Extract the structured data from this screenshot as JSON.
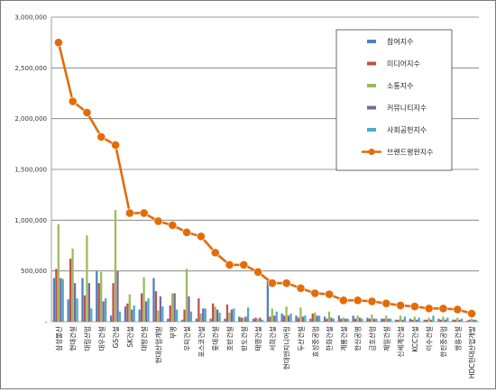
{
  "chart_data": {
    "type": "bar",
    "y_ticks": [
      "-",
      "500,000",
      "1,000,000",
      "1,500,000",
      "2,000,000",
      "2,500,000",
      "3,000,000"
    ],
    "ylim": [
      0,
      3000000
    ],
    "grid": true,
    "legend_position": "top-right",
    "categories": [
      "삼성물산",
      "현대건설",
      "대림산업",
      "대우건설",
      "GS건설",
      "SK건설",
      "대방건설",
      "현대산업개발",
      "부영",
      "우미건설",
      "포스코건설",
      "롯데건설",
      "호반건설",
      "반도건설",
      "태영건설",
      "서희건설",
      "현대엔지니어링",
      "두산건설",
      "효성중공업",
      "한화건설",
      "계룡건설",
      "한신공영",
      "금호산업",
      "제일건설",
      "신세계건설",
      "KCC건설",
      "이수건설",
      "한진중공업",
      "쌍용건설",
      "HDC현대산업개발"
    ],
    "series": [
      {
        "name": "참여지수",
        "color": "#4f81bd",
        "type": "bar",
        "values": [
          430000,
          220000,
          430000,
          500000,
          60000,
          150000,
          120000,
          430000,
          30000,
          20000,
          30000,
          30000,
          30000,
          50000,
          30000,
          400000,
          80000,
          60000,
          30000,
          50000,
          60000,
          60000,
          40000,
          30000,
          20000,
          30000,
          20000,
          30000,
          20000,
          10000
        ]
      },
      {
        "name": "미디어지수",
        "color": "#c0504d",
        "type": "bar",
        "values": [
          520000,
          620000,
          260000,
          380000,
          380000,
          180000,
          280000,
          300000,
          160000,
          120000,
          230000,
          180000,
          170000,
          40000,
          40000,
          50000,
          60000,
          40000,
          80000,
          30000,
          30000,
          30000,
          30000,
          30000,
          20000,
          20000,
          20000,
          20000,
          20000,
          20000
        ]
      },
      {
        "name": "소통지수",
        "color": "#9bbb59",
        "type": "bar",
        "values": [
          960000,
          720000,
          850000,
          490000,
          1100000,
          270000,
          440000,
          110000,
          280000,
          520000,
          80000,
          150000,
          90000,
          40000,
          30000,
          130000,
          150000,
          140000,
          90000,
          100000,
          40000,
          60000,
          70000,
          60000,
          60000,
          50000,
          40000,
          50000,
          40000,
          30000
        ]
      },
      {
        "name": "커뮤니티지수",
        "color": "#8064a2",
        "type": "bar",
        "values": [
          430000,
          380000,
          380000,
          200000,
          500000,
          120000,
          200000,
          250000,
          280000,
          250000,
          130000,
          120000,
          120000,
          50000,
          40000,
          60000,
          60000,
          50000,
          60000,
          40000,
          30000,
          40000,
          30000,
          30000,
          20000,
          20000,
          20000,
          20000,
          20000,
          20000
        ]
      },
      {
        "name": "사회공헌지수",
        "color": "#4bacc6",
        "type": "bar",
        "values": [
          420000,
          230000,
          130000,
          230000,
          100000,
          160000,
          230000,
          150000,
          120000,
          100000,
          130000,
          90000,
          130000,
          140000,
          20000,
          100000,
          80000,
          60000,
          60000,
          30000,
          30000,
          30000,
          30000,
          30000,
          50000,
          40000,
          60000,
          40000,
          30000,
          20000
        ]
      },
      {
        "name": "브랜드평판지수",
        "color": "#e36c09",
        "type": "line",
        "values": [
          2750000,
          2170000,
          2060000,
          1820000,
          1740000,
          1070000,
          1070000,
          990000,
          950000,
          880000,
          840000,
          680000,
          560000,
          560000,
          490000,
          380000,
          380000,
          330000,
          280000,
          270000,
          210000,
          210000,
          200000,
          180000,
          160000,
          150000,
          130000,
          130000,
          120000,
          80000
        ]
      }
    ]
  }
}
